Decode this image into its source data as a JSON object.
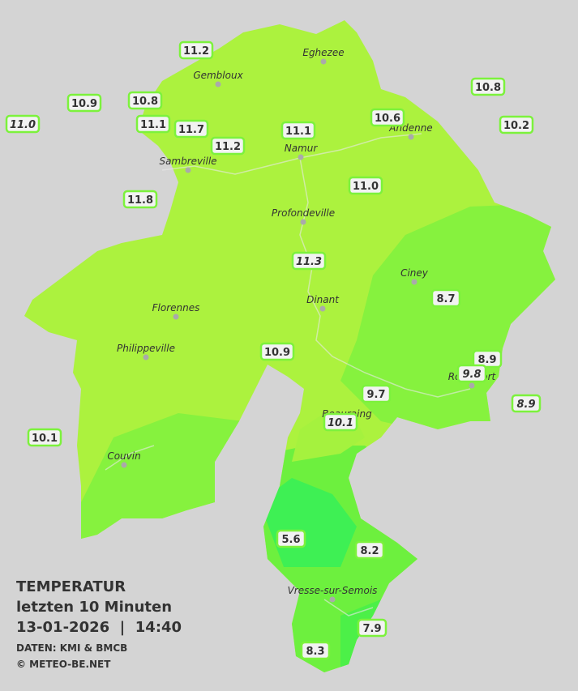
{
  "title": "TEMPERATUR",
  "subtitle": "letzten 10 Minuten",
  "timestamp": "13-01-2026  |  14:40",
  "source": "DATEN: KMI & BMCB",
  "copyright": "© METEO-BE.NET",
  "cities": [
    "Eghezee",
    "Gembloux",
    "Andenne",
    "Namur",
    "Sambreville",
    "Profondeville",
    "Ciney",
    "Florennes",
    "Dinant",
    "Philippeville",
    "Rochefort",
    "Beauraing",
    "Couvin",
    "Vresse-sur-Semois"
  ],
  "stations": [
    {
      "label": "11.2",
      "italic": false
    },
    {
      "label": "10.9",
      "italic": false
    },
    {
      "label": "10.8",
      "italic": false
    },
    {
      "label": "11.0",
      "italic": true
    },
    {
      "label": "11.1",
      "italic": false
    },
    {
      "label": "11.7",
      "italic": false
    },
    {
      "label": "11.2",
      "italic": false
    },
    {
      "label": "11.1",
      "italic": false
    },
    {
      "label": "10.6",
      "italic": false
    },
    {
      "label": "10.8",
      "italic": false
    },
    {
      "label": "10.2",
      "italic": false
    },
    {
      "label": "11.8",
      "italic": false
    },
    {
      "label": "11.0",
      "italic": false
    },
    {
      "label": "11.3",
      "italic": true
    },
    {
      "label": "8.7",
      "italic": false
    },
    {
      "label": "10.9",
      "italic": false
    },
    {
      "label": "8.9",
      "italic": false
    },
    {
      "label": "9.8",
      "italic": true
    },
    {
      "label": "8.9",
      "italic": true
    },
    {
      "label": "9.7",
      "italic": false
    },
    {
      "label": "10.1",
      "italic": true
    },
    {
      "label": "10.1",
      "italic": false
    },
    {
      "label": "5.6",
      "italic": false
    },
    {
      "label": "8.2",
      "italic": false
    },
    {
      "label": "7.9",
      "italic": false
    },
    {
      "label": "8.3",
      "italic": false
    }
  ]
}
